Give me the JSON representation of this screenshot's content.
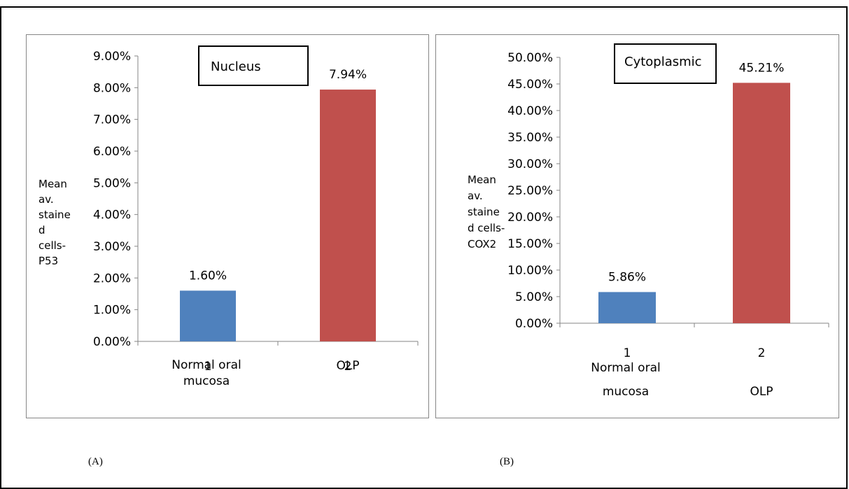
{
  "panels": [
    {
      "caption": "(A)",
      "chart_data": {
        "type": "bar",
        "title": "Nucleus",
        "ylabel_lines": [
          "Mean",
          "av.",
          "staine",
          "d",
          "cells-",
          "P53"
        ],
        "categories": [
          "1",
          "2"
        ],
        "category_labels": [
          [
            "Normal oral",
            "mucosa"
          ],
          [
            "OLP"
          ]
        ],
        "values": [
          1.6,
          7.94
        ],
        "data_labels": [
          "1.60%",
          "7.94%"
        ],
        "colors": [
          "#4f81bd",
          "#c0504d"
        ],
        "ylim": [
          0,
          9
        ],
        "ytick_labels": [
          "0.00%",
          "1.00%",
          "2.00%",
          "3.00%",
          "4.00%",
          "5.00%",
          "6.00%",
          "7.00%",
          "8.00%",
          "9.00%"
        ],
        "grid": false,
        "legend": "none"
      }
    },
    {
      "caption": "(B)",
      "chart_data": {
        "type": "bar",
        "title": "Cytoplasmic",
        "ylabel_lines": [
          "Mean",
          "av.",
          "staine",
          "d cells-",
          "COX2"
        ],
        "categories": [
          "1",
          "2"
        ],
        "category_labels": [
          [
            "Normal oral",
            "mucosa"
          ],
          [
            "OLP"
          ]
        ],
        "values": [
          5.86,
          45.21
        ],
        "data_labels": [
          "5.86%",
          "45.21%"
        ],
        "colors": [
          "#4f81bd",
          "#c0504d"
        ],
        "ylim": [
          0,
          50
        ],
        "ytick_labels": [
          "0.00%",
          "5.00%",
          "10.00%",
          "15.00%",
          "20.00%",
          "25.00%",
          "30.00%",
          "35.00%",
          "40.00%",
          "45.00%",
          "50.00%"
        ],
        "grid": false,
        "legend": "none"
      }
    }
  ]
}
